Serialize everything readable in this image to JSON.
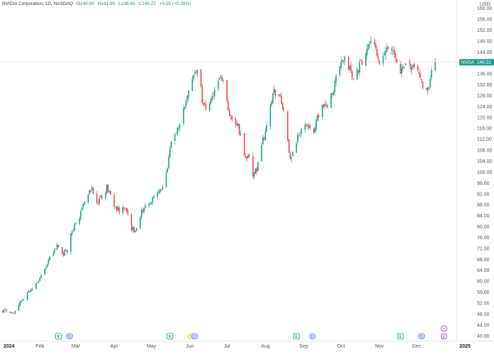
{
  "header": {
    "title": "NVIDIA Corporation, 1D, NASDAQ",
    "open_key": "O",
    "open": "140.00",
    "high_key": "H",
    "high": "141.90",
    "low_key": "L",
    "low": "138.65",
    "close_key": "C",
    "close": "140.22",
    "change": "+0.55 (+0.39%)"
  },
  "currency": "USD",
  "price_tag": {
    "symbol": "NVDA",
    "value": "140.22"
  },
  "colors": {
    "up": "#089981",
    "down": "#f23645",
    "tag": "#1f9e89",
    "earnings": "#089981",
    "dividend": "#2962ff",
    "split": "#f7a600",
    "event": "#9c27b0"
  },
  "chart_data": {
    "type": "candlestick",
    "ylim": [
      38,
      163
    ],
    "y_ticks": [
      "160.00",
      "156.00",
      "152.00",
      "148.00",
      "144.00",
      "140.00",
      "136.00",
      "132.00",
      "128.00",
      "124.00",
      "120.00",
      "116.00",
      "112.00",
      "108.00",
      "104.00",
      "100.00",
      "96.00",
      "92.00",
      "88.00",
      "84.00",
      "80.00",
      "76.00",
      "72.00",
      "68.00",
      "64.00",
      "60.00",
      "56.00",
      "52.00",
      "48.00",
      "44.00",
      "40.00"
    ],
    "x_ticks": [
      {
        "label": "2024",
        "year": true
      },
      {
        "label": "Feb"
      },
      {
        "label": "Mar"
      },
      {
        "label": "Apr"
      },
      {
        "label": "May"
      },
      {
        "label": "Jun"
      },
      {
        "label": "Jul"
      },
      {
        "label": "Aug"
      },
      {
        "label": "Sep"
      },
      {
        "label": "Oct"
      },
      {
        "label": "Nov"
      },
      {
        "label": "Dec"
      },
      {
        "label": "2025",
        "year": true
      }
    ],
    "x_tick_days": [
      0,
      31,
      60,
      91,
      121,
      152,
      182,
      213,
      244,
      274,
      305,
      335,
      366
    ],
    "anchors": [
      [
        0,
        49.0
      ],
      [
        2,
        49.4
      ],
      [
        5,
        49.0
      ],
      [
        9,
        48.0
      ],
      [
        14,
        51.5
      ],
      [
        20,
        55.0
      ],
      [
        24,
        57.0
      ],
      [
        30,
        60.5
      ],
      [
        35,
        64.5
      ],
      [
        40,
        69.5
      ],
      [
        45,
        72.5
      ],
      [
        49,
        70.0
      ],
      [
        53,
        71.0
      ],
      [
        57,
        79.0
      ],
      [
        62,
        82.0
      ],
      [
        66,
        88.0
      ],
      [
        70,
        92.0
      ],
      [
        73,
        94.0
      ],
      [
        77,
        89.0
      ],
      [
        82,
        91.0
      ],
      [
        85,
        94.5
      ],
      [
        88,
        91.5
      ],
      [
        92,
        87.0
      ],
      [
        96,
        85.5
      ],
      [
        100,
        87.5
      ],
      [
        104,
        80.0
      ],
      [
        108,
        78.0
      ],
      [
        112,
        84.0
      ],
      [
        116,
        88.5
      ],
      [
        120,
        89.0
      ],
      [
        124,
        91.0
      ],
      [
        128,
        94.0
      ],
      [
        132,
        95.5
      ],
      [
        134,
        102.0
      ],
      [
        138,
        113.0
      ],
      [
        142,
        116.0
      ],
      [
        146,
        120.5
      ],
      [
        150,
        127.0
      ],
      [
        153,
        133.0
      ],
      [
        157,
        137.0
      ],
      [
        159,
        139.0
      ],
      [
        162,
        126.0
      ],
      [
        165,
        122.5
      ],
      [
        169,
        126.0
      ],
      [
        172,
        129.0
      ],
      [
        175,
        133.5
      ],
      [
        178,
        134.0
      ],
      [
        181,
        128.0
      ],
      [
        184,
        122.0
      ],
      [
        188,
        117.5
      ],
      [
        191,
        117.0
      ],
      [
        194,
        110.5
      ],
      [
        198,
        104.0
      ],
      [
        201,
        108.0
      ],
      [
        203,
        98.0
      ],
      [
        206,
        101.0
      ],
      [
        210,
        110.0
      ],
      [
        214,
        117.0
      ],
      [
        217,
        124.5
      ],
      [
        220,
        129.0
      ],
      [
        224,
        128.5
      ],
      [
        227,
        124.0
      ],
      [
        230,
        115.0
      ],
      [
        233,
        104.0
      ],
      [
        237,
        109.0
      ],
      [
        240,
        114.0
      ],
      [
        244,
        118.0
      ],
      [
        248,
        116.0
      ],
      [
        252,
        115.5
      ],
      [
        256,
        121.0
      ],
      [
        260,
        124.5
      ],
      [
        264,
        125.0
      ],
      [
        268,
        131.0
      ],
      [
        271,
        136.0
      ],
      [
        274,
        139.0
      ],
      [
        277,
        140.5
      ],
      [
        281,
        137.5
      ],
      [
        284,
        133.5
      ],
      [
        287,
        136.5
      ],
      [
        291,
        141.0
      ],
      [
        295,
        145.0
      ],
      [
        298,
        148.0
      ],
      [
        301,
        145.0
      ],
      [
        304,
        141.5
      ],
      [
        306,
        137.5
      ],
      [
        309,
        142.5
      ],
      [
        313,
        146.0
      ],
      [
        316,
        144.0
      ],
      [
        319,
        141.5
      ],
      [
        322,
        136.5
      ],
      [
        325,
        138.0
      ],
      [
        328,
        141.0
      ],
      [
        331,
        137.5
      ],
      [
        335,
        138.5
      ],
      [
        339,
        133.0
      ],
      [
        342,
        130.0
      ],
      [
        344,
        129.5
      ],
      [
        347,
        136.0
      ],
      [
        350,
        140.2
      ]
    ],
    "last_close": 140.22,
    "events": [
      {
        "day": 46,
        "type": "earnings",
        "label": "E"
      },
      {
        "day": 55,
        "type": "dividend",
        "label": "D"
      },
      {
        "day": 136,
        "type": "earnings",
        "label": "E"
      },
      {
        "day": 153,
        "type": "split",
        "label": "S"
      },
      {
        "day": 156,
        "type": "dividend",
        "label": "D"
      },
      {
        "day": 238,
        "type": "earnings",
        "label": "E"
      },
      {
        "day": 251,
        "type": "dividend",
        "label": "D"
      },
      {
        "day": 322,
        "type": "earnings",
        "label": "E"
      },
      {
        "day": 339,
        "type": "dividend",
        "label": "D"
      },
      {
        "day": 357,
        "type": "event",
        "label": "+",
        "row": 2
      },
      {
        "day": 357,
        "type": "event",
        "label": "£",
        "row": 1
      }
    ]
  }
}
